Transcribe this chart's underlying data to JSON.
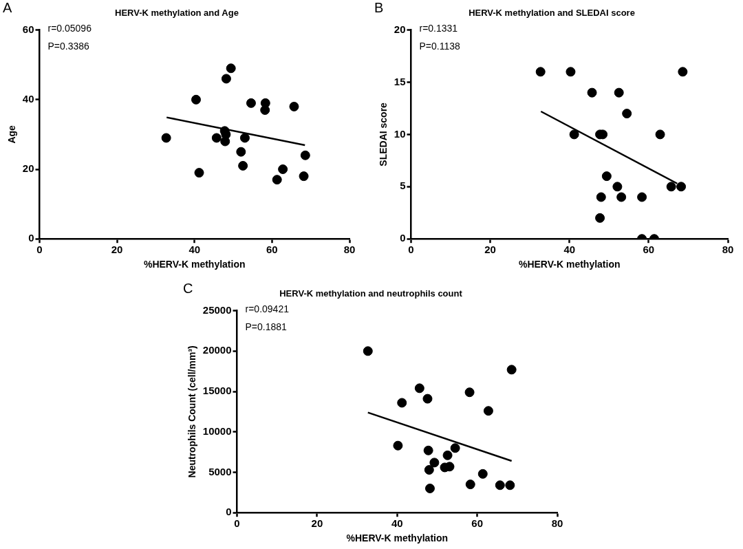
{
  "chart_data": [
    {
      "type": "scatter",
      "title": "HERV-K methylation and Age",
      "xlabel": "%HERV-K methylation",
      "ylabel": "Age",
      "annotations": [
        "A",
        "r=0.05096",
        "P=0.3386"
      ],
      "xlim": [
        0,
        80
      ],
      "xticks": [
        0,
        20,
        40,
        60,
        80
      ],
      "ylim": [
        0,
        60
      ],
      "yticks": [
        0,
        20,
        40,
        60
      ],
      "x": [
        32.7,
        40.4,
        41.2,
        45.7,
        47.8,
        48.1,
        47.9,
        48.2,
        49.4,
        52,
        52.5,
        53,
        54.6,
        58.3,
        58.2,
        61.3,
        62.8,
        65.7,
        68.2,
        68.6
      ],
      "series": [
        {
          "color": "#000000",
          "marker": "circle",
          "values": [
            29,
            40,
            19,
            29,
            31,
            30,
            28,
            46,
            49,
            25,
            21,
            29,
            39,
            39,
            37,
            17,
            20,
            38,
            18,
            24
          ]
        },
        {
          "type": "line",
          "color": "#000000",
          "marker": "none",
          "x": [
            32.8,
            68.5
          ],
          "values": [
            34.9,
            26.9
          ]
        }
      ]
    },
    {
      "type": "scatter",
      "title": "HERV-K methylation and SLEDAI score",
      "xlabel": "%HERV-K methylation",
      "ylabel": "SLEDAI score",
      "annotations": [
        "B",
        "r=0.1331",
        "P=0.1138"
      ],
      "xlim": [
        0,
        80
      ],
      "xticks": [
        0,
        20,
        40,
        60,
        80
      ],
      "ylim": [
        0,
        20
      ],
      "yticks": [
        0,
        5,
        10,
        15,
        20
      ],
      "x": [
        32.7,
        40.3,
        41.2,
        45.7,
        47.7,
        48.4,
        48,
        47.7,
        49.4,
        52.1,
        52.5,
        53.1,
        54.5,
        58.3,
        58.3,
        61.4,
        62.9,
        65.7,
        68.2,
        68.6
      ],
      "series": [
        {
          "color": "#000000",
          "marker": "circle",
          "values": [
            16,
            16,
            10,
            14,
            10,
            10,
            4,
            2,
            6,
            5,
            14,
            4,
            12,
            0,
            4,
            0,
            10,
            5,
            5,
            16
          ]
        },
        {
          "type": "line",
          "color": "#000000",
          "marker": "none",
          "x": [
            32.8,
            67.2
          ],
          "values": [
            12.2,
            5.3
          ]
        }
      ]
    },
    {
      "type": "scatter",
      "title": "HERV-K methylation and neutrophils count",
      "xlabel": "%HERV-K methylation",
      "ylabel": "Neutrophils Count (cell/mm³)",
      "annotations": [
        "C",
        "r=0.09421",
        "P=0.1881"
      ],
      "xlim": [
        0,
        80
      ],
      "xticks": [
        0,
        20,
        40,
        60,
        80
      ],
      "ylim": [
        0,
        25000
      ],
      "yticks": [
        0,
        5000,
        10000,
        15000,
        20000,
        25000
      ],
      "x": [
        32.7,
        41.2,
        40.2,
        45.6,
        47.6,
        47.8,
        49.3,
        48,
        48.2,
        51.9,
        53.1,
        52.6,
        54.5,
        58.1,
        58.3,
        61.4,
        62.8,
        65.7,
        68.2,
        68.6
      ],
      "series": [
        {
          "color": "#000000",
          "marker": "circle",
          "values": [
            20000,
            13600,
            8300,
            15400,
            14100,
            7700,
            6200,
            5300,
            3000,
            5600,
            5700,
            7100,
            8000,
            14900,
            3500,
            4800,
            12600,
            3400,
            3400,
            17700
          ]
        },
        {
          "type": "line",
          "color": "#000000",
          "marker": "none",
          "x": [
            32.7,
            68.6
          ],
          "values": [
            12400,
            6400
          ]
        }
      ]
    }
  ]
}
